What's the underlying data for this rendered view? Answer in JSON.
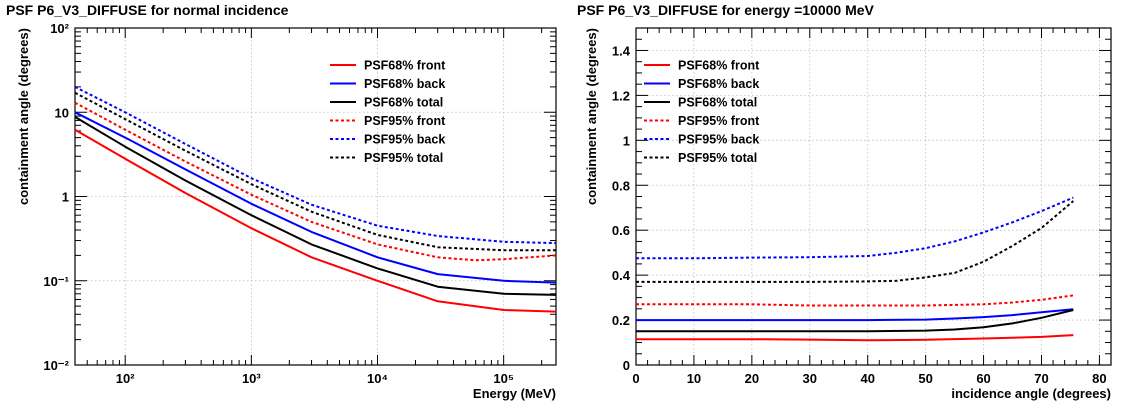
{
  "chart_data": [
    {
      "type": "line",
      "title": "PSF P6_V3_DIFFUSE for normal incidence",
      "xlabel": "Energy (MeV)",
      "ylabel": "containment angle (degrees)",
      "xscale": "log",
      "yscale": "log",
      "xlim": [
        40,
        260000
      ],
      "ylim": [
        0.01,
        100
      ],
      "x_tick_labels": [
        "10²",
        "10³",
        "10⁴",
        "10⁵"
      ],
      "x_tick_values": [
        100,
        1000,
        10000,
        100000
      ],
      "y_tick_labels": [
        "10⁻²",
        "10⁻¹",
        "1",
        "10",
        "10²"
      ],
      "y_tick_values": [
        0.01,
        0.1,
        1,
        10,
        100
      ],
      "grid": true,
      "legend_position": "top-right",
      "series": [
        {
          "name": "PSF68% front",
          "color": "#ff0000",
          "dash": "solid",
          "x": [
            40,
            100,
            300,
            1000,
            3000,
            10000,
            30000,
            100000,
            260000
          ],
          "y": [
            6.2,
            2.8,
            1.1,
            0.42,
            0.19,
            0.1,
            0.057,
            0.045,
            0.043
          ]
        },
        {
          "name": "PSF68% back",
          "color": "#0000ff",
          "dash": "solid",
          "x": [
            40,
            100,
            300,
            1000,
            3000,
            10000,
            30000,
            100000,
            260000
          ],
          "y": [
            10,
            5,
            2.1,
            0.82,
            0.38,
            0.19,
            0.12,
            0.1,
            0.095
          ]
        },
        {
          "name": "PSF68% total",
          "color": "#000000",
          "dash": "solid",
          "x": [
            40,
            100,
            300,
            1000,
            3000,
            10000,
            30000,
            100000,
            260000
          ],
          "y": [
            8.8,
            3.9,
            1.55,
            0.6,
            0.27,
            0.14,
            0.085,
            0.07,
            0.068
          ]
        },
        {
          "name": "PSF95% front",
          "color": "#ff0000",
          "dash": "dotted",
          "x": [
            40,
            100,
            300,
            1000,
            3000,
            10000,
            30000,
            60000,
            100000,
            260000
          ],
          "y": [
            13,
            6.2,
            2.6,
            1.05,
            0.5,
            0.27,
            0.19,
            0.175,
            0.18,
            0.2
          ]
        },
        {
          "name": "PSF95% back",
          "color": "#0000ff",
          "dash": "dotted",
          "x": [
            40,
            100,
            300,
            1000,
            3000,
            10000,
            30000,
            100000,
            260000
          ],
          "y": [
            20,
            10,
            4.2,
            1.65,
            0.8,
            0.45,
            0.34,
            0.29,
            0.28
          ]
        },
        {
          "name": "PSF95% total",
          "color": "#000000",
          "dash": "dotted",
          "x": [
            40,
            100,
            300,
            1000,
            3000,
            10000,
            30000,
            100000,
            260000
          ],
          "y": [
            17,
            8.3,
            3.5,
            1.4,
            0.66,
            0.35,
            0.25,
            0.23,
            0.23
          ]
        }
      ]
    },
    {
      "type": "line",
      "title": "PSF P6_V3_DIFFUSE for energy =10000 MeV",
      "xlabel": "incidence angle (degrees)",
      "ylabel": "containment angle (degrees)",
      "xlim": [
        0,
        82
      ],
      "ylim": [
        0,
        1.5
      ],
      "x_ticks": [
        0,
        10,
        20,
        30,
        40,
        50,
        60,
        70,
        80
      ],
      "y_ticks": [
        0,
        0.2,
        0.4,
        0.6,
        0.8,
        1,
        1.2,
        1.4
      ],
      "grid": true,
      "legend_position": "top-left",
      "series": [
        {
          "name": "PSF68% front",
          "color": "#ff0000",
          "dash": "solid",
          "x": [
            0,
            10,
            20,
            30,
            40,
            50,
            60,
            70,
            75.5
          ],
          "y": [
            0.115,
            0.115,
            0.115,
            0.113,
            0.11,
            0.112,
            0.118,
            0.125,
            0.133
          ]
        },
        {
          "name": "PSF68% back",
          "color": "#0000ff",
          "dash": "solid",
          "x": [
            0,
            10,
            20,
            30,
            40,
            50,
            55,
            60,
            65,
            70,
            75.5
          ],
          "y": [
            0.2,
            0.2,
            0.2,
            0.2,
            0.2,
            0.202,
            0.207,
            0.213,
            0.222,
            0.235,
            0.248
          ]
        },
        {
          "name": "PSF68% total",
          "color": "#000000",
          "dash": "solid",
          "x": [
            0,
            10,
            20,
            30,
            40,
            50,
            55,
            60,
            65,
            70,
            75.5
          ],
          "y": [
            0.15,
            0.15,
            0.15,
            0.15,
            0.15,
            0.153,
            0.158,
            0.168,
            0.185,
            0.21,
            0.245
          ]
        },
        {
          "name": "PSF95% front",
          "color": "#ff0000",
          "dash": "dotted",
          "x": [
            0,
            10,
            20,
            30,
            40,
            50,
            60,
            65,
            70,
            75.5
          ],
          "y": [
            0.27,
            0.27,
            0.27,
            0.265,
            0.265,
            0.265,
            0.27,
            0.278,
            0.29,
            0.31
          ]
        },
        {
          "name": "PSF95% back",
          "color": "#0000ff",
          "dash": "dotted",
          "x": [
            0,
            10,
            20,
            30,
            40,
            45,
            50,
            55,
            60,
            65,
            70,
            75.5
          ],
          "y": [
            0.475,
            0.475,
            0.478,
            0.48,
            0.485,
            0.5,
            0.52,
            0.55,
            0.59,
            0.635,
            0.685,
            0.745
          ]
        },
        {
          "name": "PSF95% total",
          "color": "#000000",
          "dash": "dotted",
          "x": [
            0,
            10,
            20,
            30,
            40,
            45,
            50,
            55,
            60,
            65,
            70,
            75.5
          ],
          "y": [
            0.37,
            0.37,
            0.37,
            0.37,
            0.372,
            0.375,
            0.39,
            0.41,
            0.46,
            0.53,
            0.61,
            0.73
          ]
        }
      ]
    }
  ]
}
